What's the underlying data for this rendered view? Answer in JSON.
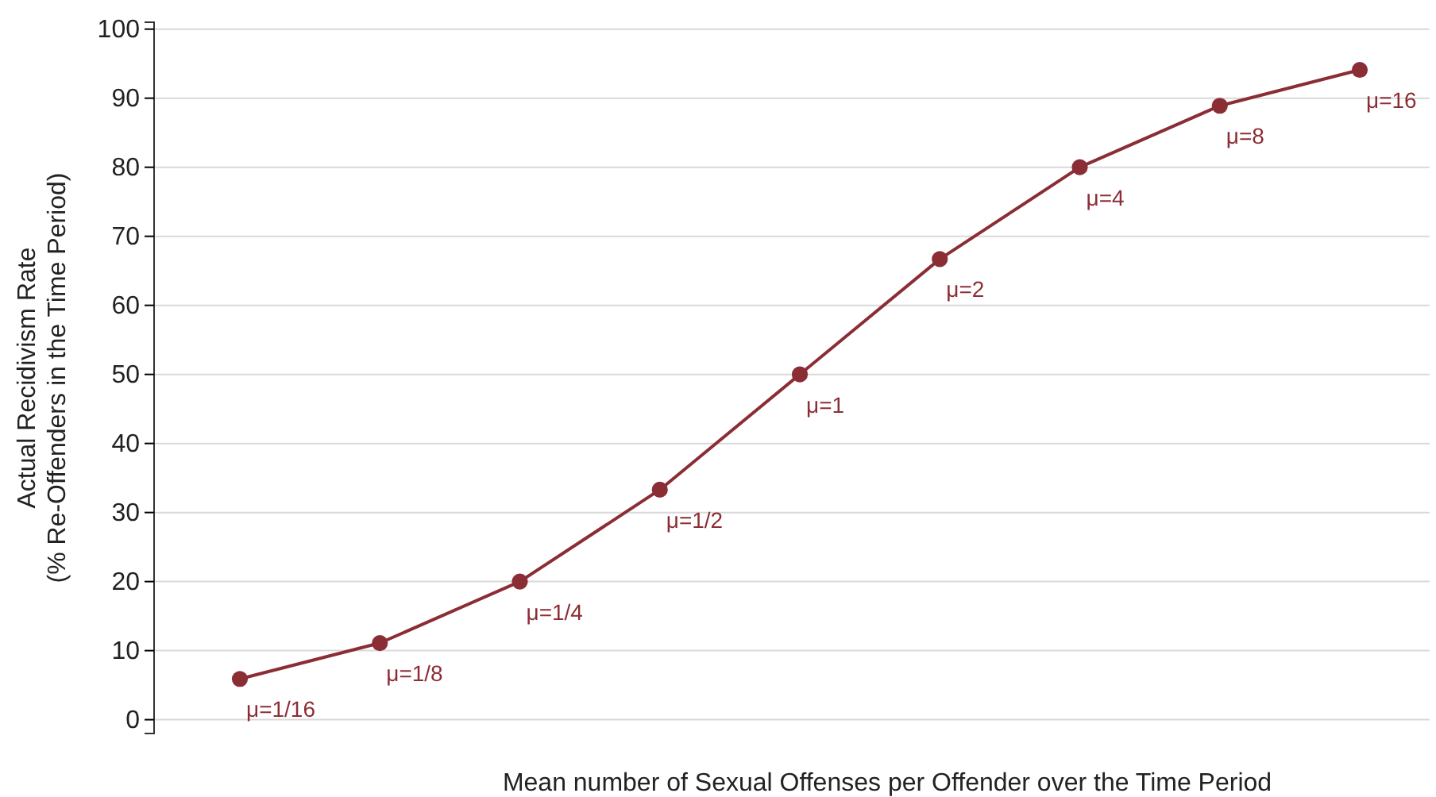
{
  "chart_data": {
    "type": "line",
    "ylabel": "Actual Recidivism Rate\n(% Re-Offenders in the Time Period)",
    "xlabel": "Mean number of Sexual Offenses per Offender over the Time Period",
    "ylim": [
      -2,
      101
    ],
    "yticks": [
      0,
      10,
      20,
      30,
      40,
      50,
      60,
      70,
      80,
      90,
      100
    ],
    "tick_labels": "y",
    "grid": "y",
    "marker": "circle",
    "categories": [
      null,
      null,
      null,
      null,
      null,
      null,
      null,
      null,
      null
    ],
    "series": [
      {
        "color": "#8b2d35",
        "values": [
          5.9,
          11.1,
          20,
          33.3,
          50,
          66.7,
          80,
          88.9,
          94.1
        ]
      }
    ],
    "annotations": [
      "μ=1/16",
      "μ=1/8",
      "μ=1/4",
      "μ=1/2",
      "μ=1",
      "μ=2",
      "μ=4",
      "μ=8",
      "μ=16"
    ]
  }
}
